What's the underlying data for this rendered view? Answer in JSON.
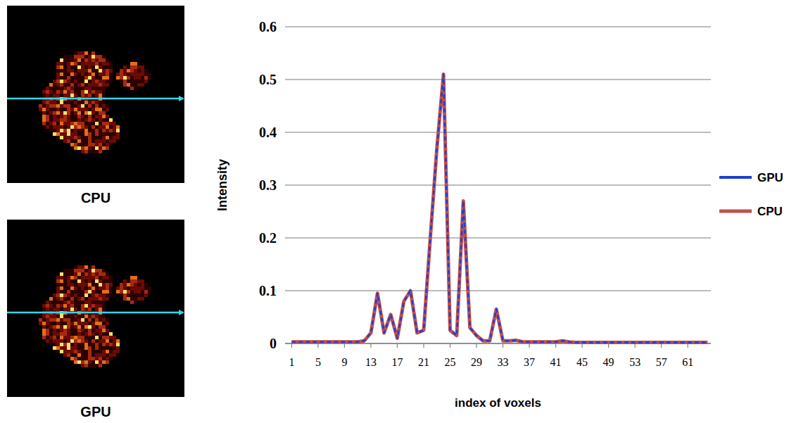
{
  "chart_data": {
    "type": "line",
    "x_label": "index of voxels",
    "y_label": "Intensity",
    "x": [
      1,
      2,
      3,
      4,
      5,
      6,
      7,
      8,
      9,
      10,
      11,
      12,
      13,
      14,
      15,
      16,
      17,
      18,
      19,
      20,
      21,
      22,
      23,
      24,
      25,
      26,
      27,
      28,
      29,
      30,
      31,
      32,
      33,
      34,
      35,
      36,
      37,
      38,
      39,
      40,
      41,
      42,
      43,
      44,
      45,
      46,
      47,
      48,
      49,
      50,
      51,
      52,
      53,
      54,
      55,
      56,
      57,
      58,
      59,
      60,
      61,
      62,
      63,
      64
    ],
    "series": [
      {
        "name": "GPU",
        "color": "#1f3fd0",
        "line_style": "dashed",
        "values": [
          0.003,
          0.003,
          0.003,
          0.003,
          0.003,
          0.003,
          0.003,
          0.003,
          0.003,
          0.003,
          0.003,
          0.005,
          0.02,
          0.095,
          0.02,
          0.055,
          0.01,
          0.08,
          0.1,
          0.02,
          0.025,
          0.2,
          0.37,
          0.51,
          0.025,
          0.015,
          0.27,
          0.03,
          0.015,
          0.005,
          0.005,
          0.065,
          0.005,
          0.005,
          0.006,
          0.003,
          0.003,
          0.003,
          0.003,
          0.003,
          0.003,
          0.005,
          0.003,
          0.002,
          0.002,
          0.002,
          0.002,
          0.002,
          0.002,
          0.002,
          0.002,
          0.002,
          0.002,
          0.002,
          0.002,
          0.002,
          0.002,
          0.002,
          0.002,
          0.002,
          0.002,
          0.002,
          0.002,
          0.002
        ]
      },
      {
        "name": "CPU",
        "color": "#c0504d",
        "line_style": "solid",
        "values": [
          0.003,
          0.003,
          0.003,
          0.003,
          0.003,
          0.003,
          0.003,
          0.003,
          0.003,
          0.003,
          0.003,
          0.005,
          0.02,
          0.095,
          0.02,
          0.055,
          0.01,
          0.08,
          0.1,
          0.02,
          0.025,
          0.2,
          0.37,
          0.51,
          0.025,
          0.015,
          0.27,
          0.03,
          0.015,
          0.005,
          0.005,
          0.065,
          0.005,
          0.005,
          0.006,
          0.003,
          0.003,
          0.003,
          0.003,
          0.003,
          0.003,
          0.005,
          0.003,
          0.002,
          0.002,
          0.002,
          0.002,
          0.002,
          0.002,
          0.002,
          0.002,
          0.002,
          0.002,
          0.002,
          0.002,
          0.002,
          0.002,
          0.002,
          0.002,
          0.002,
          0.002,
          0.002,
          0.002,
          0.002
        ]
      }
    ],
    "xlim": [
      0,
      64.5
    ],
    "xticks": [
      1,
      5,
      9,
      13,
      17,
      21,
      25,
      29,
      33,
      37,
      41,
      45,
      49,
      53,
      57,
      61
    ],
    "ylim": [
      0,
      0.6
    ],
    "yticks": [
      0,
      0.1,
      0.2,
      0.3,
      0.4,
      0.5,
      0.6
    ],
    "grid": true,
    "legend": "right"
  },
  "images": {
    "labels": [
      "CPU",
      "GPU"
    ]
  }
}
